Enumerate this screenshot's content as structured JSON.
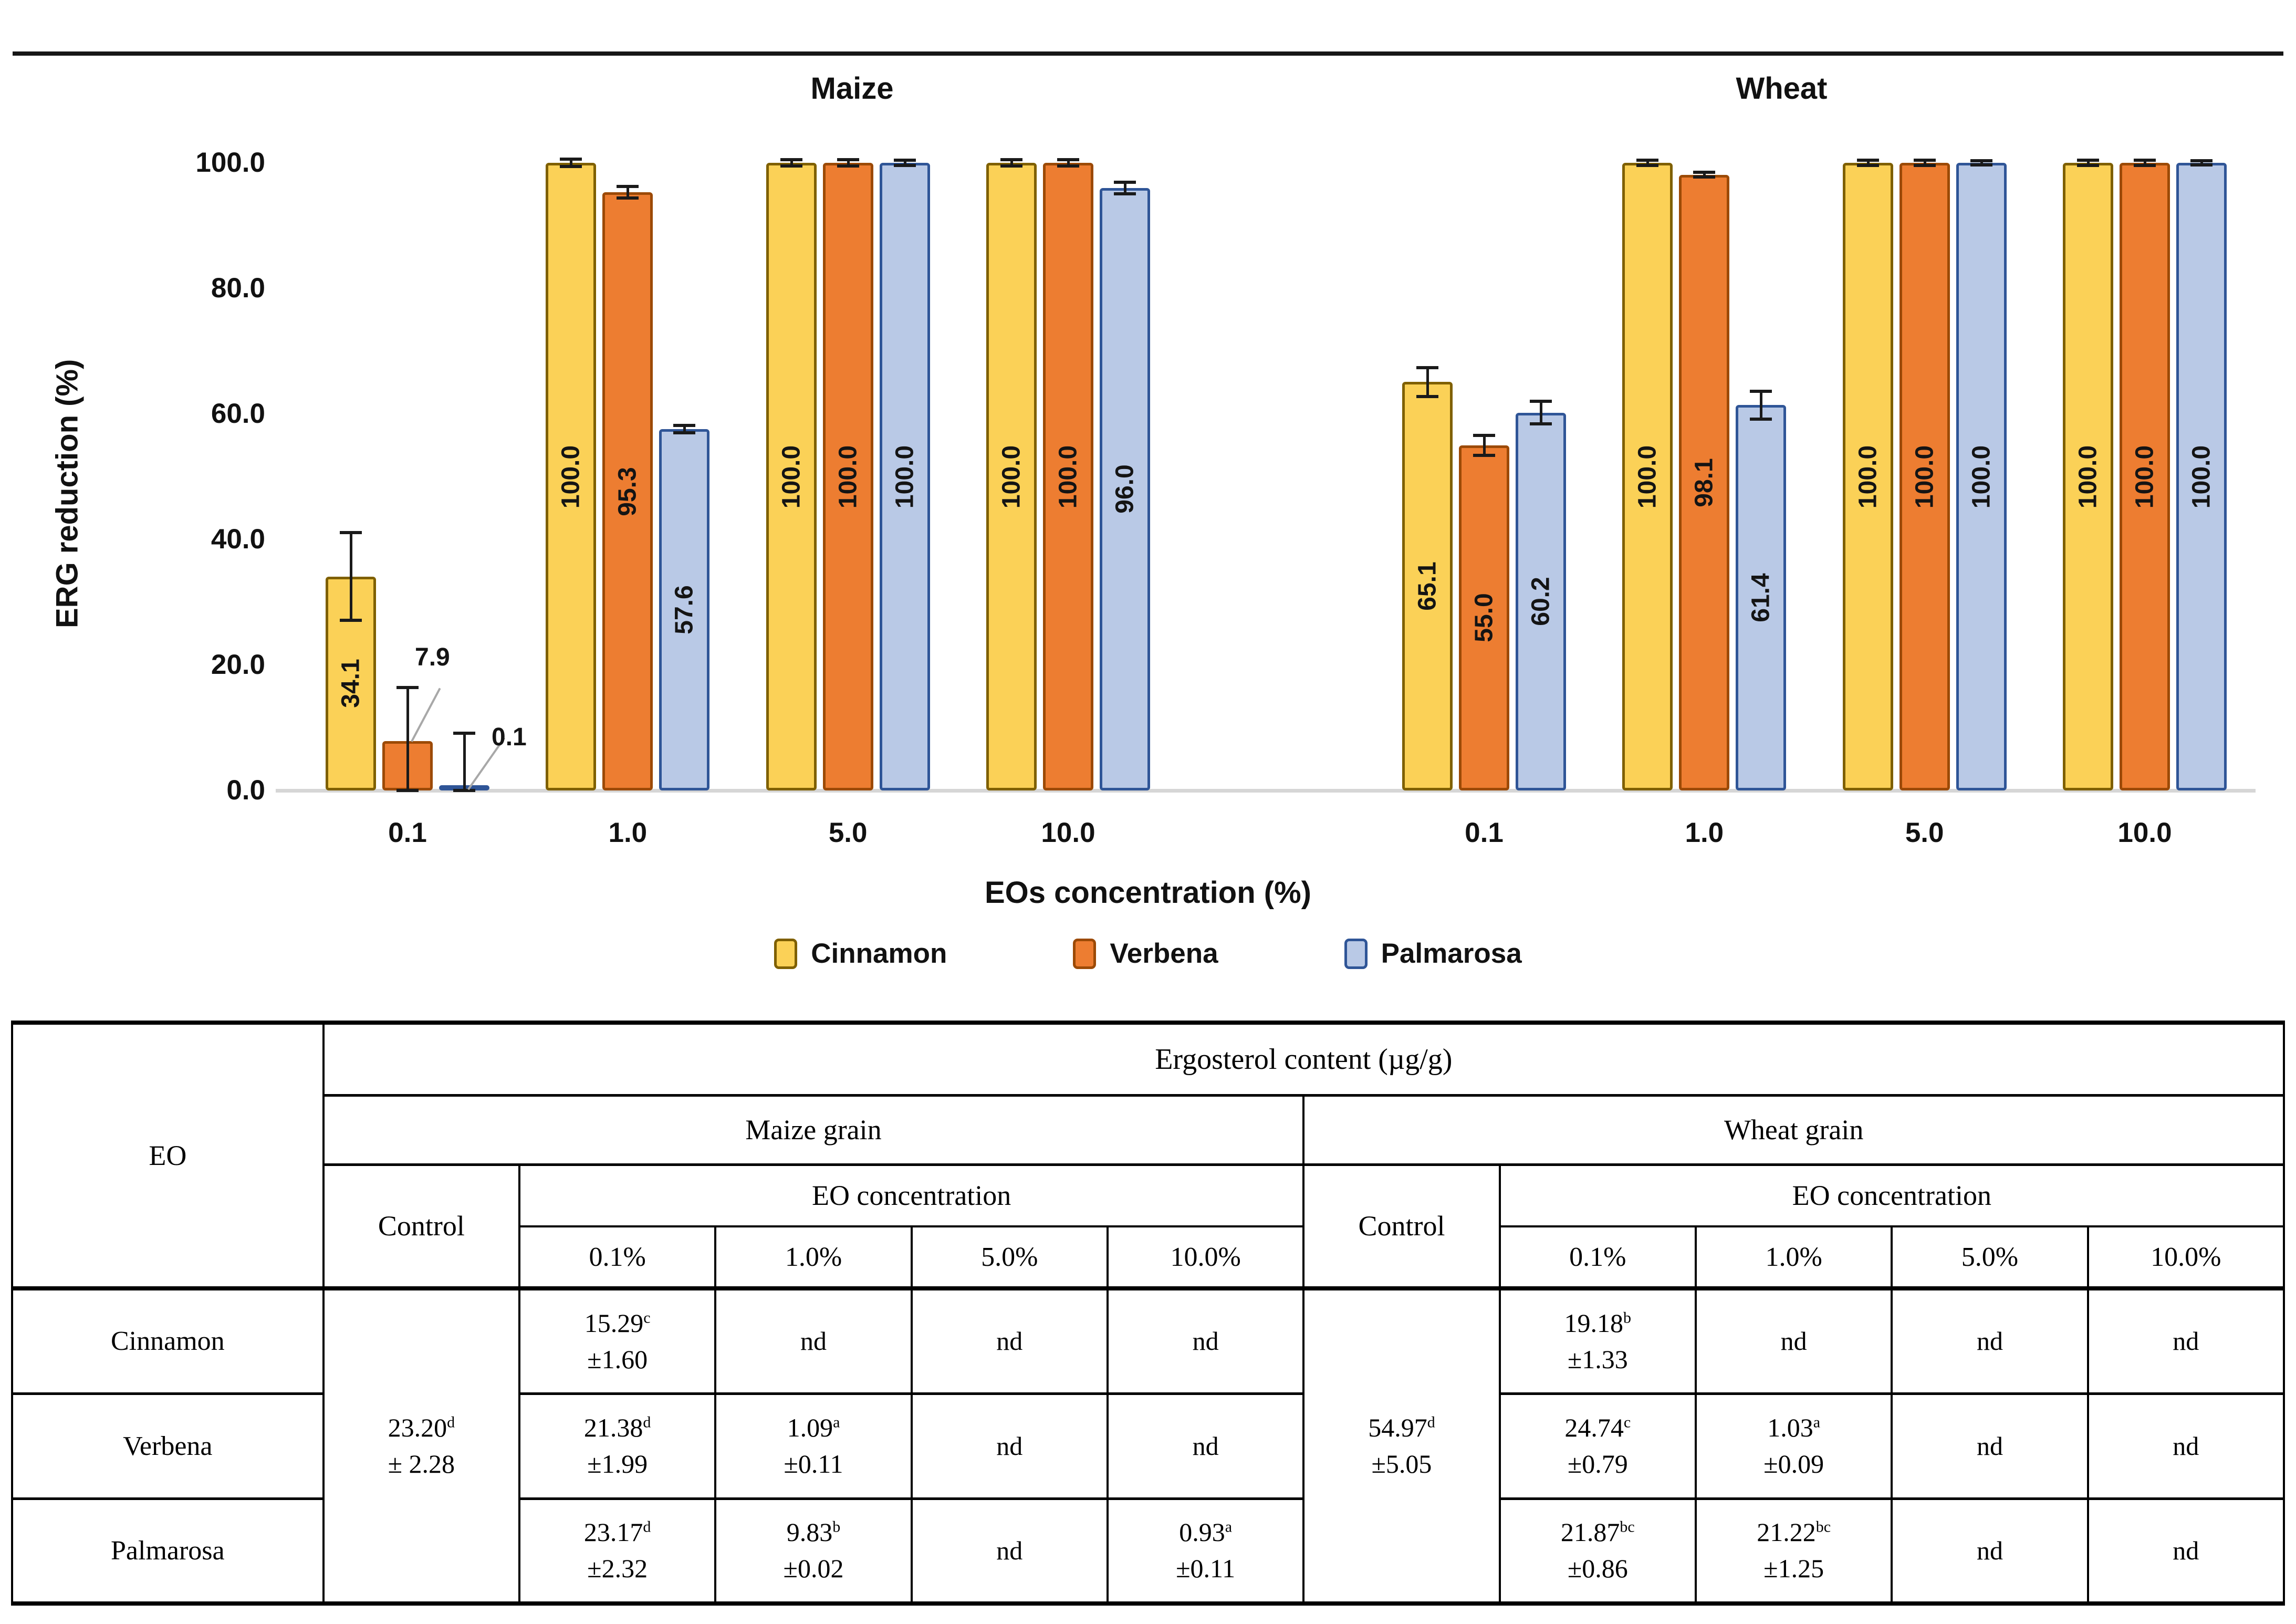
{
  "chart": {
    "panel_titles": [
      "Maize",
      "Wheat"
    ],
    "y_axis_label": "ERG reduction (%)",
    "x_axis_label": "EOs concentration (%)",
    "y_ticks": [
      "100.0",
      "80.0",
      "60.0",
      "40.0",
      "20.0",
      "0.0"
    ],
    "legend": [
      {
        "label": "Cinnamon",
        "fill": "#FBD157",
        "border": "#7F6000"
      },
      {
        "label": "Verbena",
        "fill": "#ED7D31",
        "border": "#9C4A06"
      },
      {
        "label": "Palmarosa",
        "fill": "#B9C9E6",
        "border": "#2F5597"
      }
    ],
    "axis_line_color": "#d6d6d6",
    "error_bar_color": "#1a1a1a",
    "leader_line_color": "#a8a8a8"
  },
  "chart_data": {
    "type": "bar",
    "title": "",
    "xlabel": "EOs concentration (%)",
    "ylabel": "ERG reduction (%)",
    "ylim": [
      0,
      100
    ],
    "grid": false,
    "legend_position": "bottom",
    "panels": [
      {
        "title": "Maize",
        "categories": [
          "0.1",
          "1.0",
          "5.0",
          "10.0"
        ],
        "series": [
          {
            "name": "Cinnamon",
            "values": [
              34.1,
              100.0,
              100.0,
              100.0
            ],
            "errors": [
              7.0,
              0.6,
              0.5,
              0.5
            ]
          },
          {
            "name": "Verbena",
            "values": [
              7.9,
              95.3,
              100.0,
              100.0
            ],
            "errors": [
              8.5,
              0.9,
              0.5,
              0.5
            ]
          },
          {
            "name": "Palmarosa",
            "values": [
              0.1,
              57.6,
              100.0,
              96.0
            ],
            "errors": [
              9.0,
              0.6,
              0.4,
              0.9
            ]
          }
        ]
      },
      {
        "title": "Wheat",
        "categories": [
          "0.1",
          "1.0",
          "5.0",
          "10.0"
        ],
        "series": [
          {
            "name": "Cinnamon",
            "values": [
              65.1,
              100.0,
              100.0,
              100.0
            ],
            "errors": [
              2.3,
              0.4,
              0.4,
              0.4
            ]
          },
          {
            "name": "Verbena",
            "values": [
              55.0,
              98.1,
              100.0,
              100.0
            ],
            "errors": [
              1.6,
              0.4,
              0.4,
              0.4
            ]
          },
          {
            "name": "Palmarosa",
            "values": [
              60.2,
              61.4,
              100.0,
              100.0
            ],
            "errors": [
              1.8,
              2.2,
              0.3,
              0.3
            ]
          }
        ]
      }
    ]
  },
  "table": {
    "title_span": "Ergosterol content (µg/g)",
    "eo_header": "EO",
    "grain_headers": [
      "Maize grain",
      "Wheat grain"
    ],
    "control_label": "Control",
    "conc_label": "EO concentration",
    "conc_cols": [
      "0.1%",
      "1.0%",
      "5.0%",
      "10.0%"
    ],
    "nd_label": "nd",
    "controls": {
      "maize": {
        "v": "23.20",
        "sup": "d",
        "err": "± 2.28"
      },
      "wheat": {
        "v": "54.97",
        "sup": "d",
        "err": "±5.05"
      }
    },
    "rows": [
      {
        "eo": "Cinnamon",
        "maize": [
          {
            "v": "15.29",
            "sup": "c",
            "err": "±1.60"
          },
          {
            "nd": true
          },
          {
            "nd": true
          },
          {
            "nd": true
          }
        ],
        "wheat": [
          {
            "v": "19.18",
            "sup": "b",
            "err": "±1.33"
          },
          {
            "nd": true
          },
          {
            "nd": true
          },
          {
            "nd": true
          }
        ]
      },
      {
        "eo": "Verbena",
        "maize": [
          {
            "v": "21.38",
            "sup": "d",
            "err": "±1.99"
          },
          {
            "v": "1.09",
            "sup": "a",
            "err": "±0.11"
          },
          {
            "nd": true
          },
          {
            "nd": true
          }
        ],
        "wheat": [
          {
            "v": "24.74",
            "sup": "c",
            "err": "±0.79"
          },
          {
            "v": "1.03",
            "sup": "a",
            "err": "±0.09"
          },
          {
            "nd": true
          },
          {
            "nd": true
          }
        ]
      },
      {
        "eo": "Palmarosa",
        "maize": [
          {
            "v": "23.17",
            "sup": "d",
            "err": "±2.32"
          },
          {
            "v": "9.83",
            "sup": "b",
            "err": "±0.02"
          },
          {
            "nd": true
          },
          {
            "v": "0.93",
            "sup": "a",
            "err": "±0.11"
          }
        ],
        "wheat": [
          {
            "v": "21.87",
            "sup": "bc",
            "err": "±0.86"
          },
          {
            "v": "21.22",
            "sup": "bc",
            "err": "±1.25"
          },
          {
            "nd": true
          },
          {
            "nd": true
          }
        ]
      }
    ]
  }
}
